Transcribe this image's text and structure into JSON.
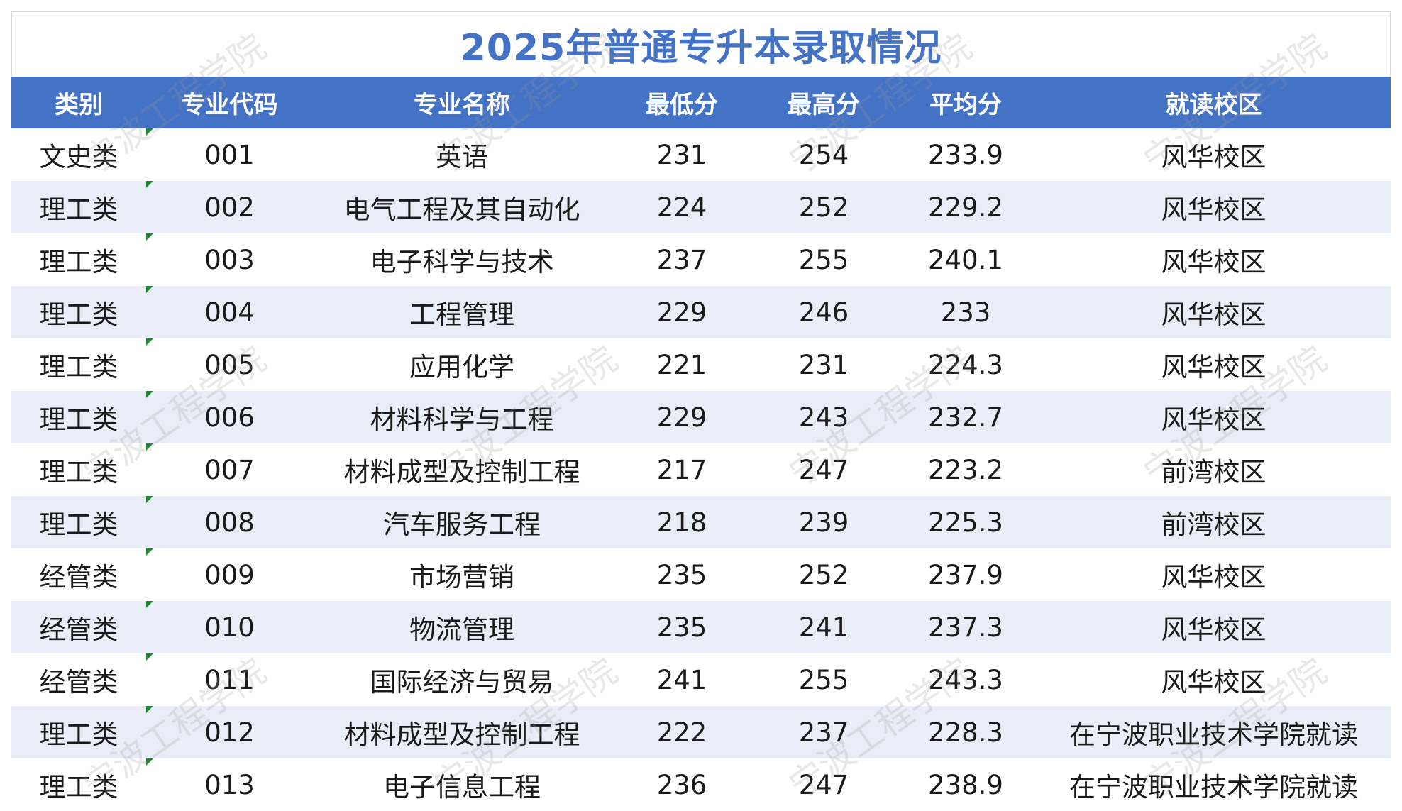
{
  "title": "2025年普通专升本录取情况",
  "watermark": "宁波工程学院",
  "colors": {
    "header_bg": "#4472c4",
    "title": "#4472c4",
    "stripe": "#e9edf7",
    "cell_marker": "#1e8a2e"
  },
  "headers": [
    "类别",
    "专业代码",
    "专业名称",
    "最低分",
    "最高分",
    "平均分",
    "就读校区"
  ],
  "rows": [
    [
      "文史类",
      "001",
      "英语",
      "231",
      "254",
      "233.9",
      "风华校区"
    ],
    [
      "理工类",
      "002",
      "电气工程及其自动化",
      "224",
      "252",
      "229.2",
      "风华校区"
    ],
    [
      "理工类",
      "003",
      "电子科学与技术",
      "237",
      "255",
      "240.1",
      "风华校区"
    ],
    [
      "理工类",
      "004",
      "工程管理",
      "229",
      "246",
      "233",
      "风华校区"
    ],
    [
      "理工类",
      "005",
      "应用化学",
      "221",
      "231",
      "224.3",
      "风华校区"
    ],
    [
      "理工类",
      "006",
      "材料科学与工程",
      "229",
      "243",
      "232.7",
      "风华校区"
    ],
    [
      "理工类",
      "007",
      "材料成型及控制工程",
      "217",
      "247",
      "223.2",
      "前湾校区"
    ],
    [
      "理工类",
      "008",
      "汽车服务工程",
      "218",
      "239",
      "225.3",
      "前湾校区"
    ],
    [
      "经管类",
      "009",
      "市场营销",
      "235",
      "252",
      "237.9",
      "风华校区"
    ],
    [
      "经管类",
      "010",
      "物流管理",
      "235",
      "241",
      "237.3",
      "风华校区"
    ],
    [
      "经管类",
      "011",
      "国际经济与贸易",
      "241",
      "255",
      "243.3",
      "风华校区"
    ],
    [
      "理工类",
      "012",
      "材料成型及控制工程",
      "222",
      "237",
      "228.3",
      "在宁波职业技术学院就读"
    ],
    [
      "理工类",
      "013",
      "电子信息工程",
      "236",
      "247",
      "238.9",
      "在宁波职业技术学院就读"
    ]
  ]
}
